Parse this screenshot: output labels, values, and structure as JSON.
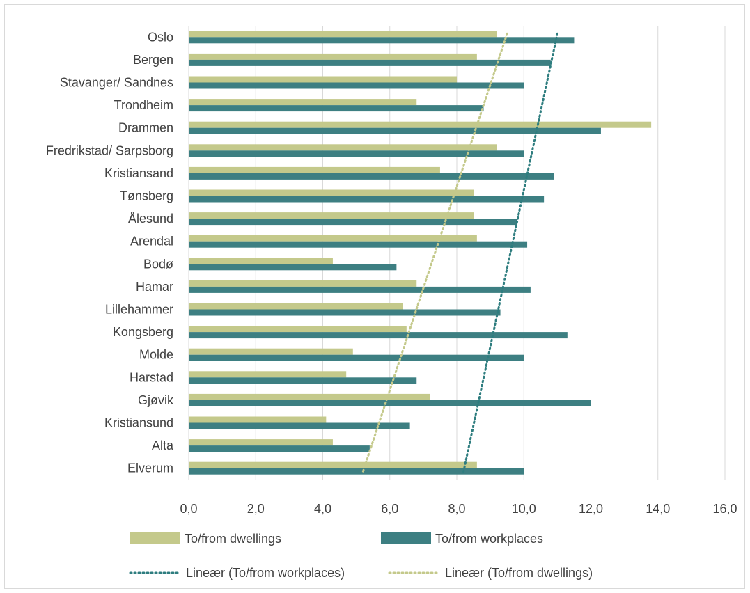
{
  "chart_data": {
    "type": "bar",
    "orientation": "horizontal",
    "categories": [
      "Oslo",
      "Bergen",
      "Stavanger/ Sandnes",
      "Trondheim",
      "Drammen",
      "Fredrikstad/ Sarpsborg",
      "Kristiansand",
      "Tønsberg",
      "Ålesund",
      "Arendal",
      "Bodø",
      "Hamar",
      "Lillehammer",
      "Kongsberg",
      "Molde",
      "Harstad",
      "Gjøvik",
      "Kristiansund",
      "Alta",
      "Elverum"
    ],
    "series": [
      {
        "name": "To/from dwellings",
        "color": "#c4c98b",
        "values": [
          9.2,
          8.6,
          8.0,
          6.8,
          13.8,
          9.2,
          7.5,
          8.5,
          8.5,
          8.6,
          4.3,
          6.8,
          6.4,
          6.5,
          4.9,
          4.7,
          7.2,
          4.1,
          4.3,
          8.6
        ]
      },
      {
        "name": "To/from workplaces",
        "color": "#3d7f82",
        "values": [
          11.5,
          10.8,
          10.0,
          8.8,
          12.3,
          10.0,
          10.9,
          10.6,
          9.8,
          10.1,
          6.2,
          10.2,
          9.3,
          11.3,
          10.0,
          6.8,
          12.0,
          6.6,
          5.4,
          10.0
        ]
      }
    ],
    "trendlines": [
      {
        "name": "Lineær (To/from workplaces)",
        "color": "#2e7d7f",
        "start": 11.0,
        "end": 8.2
      },
      {
        "name": "Lineær (To/from dwellings)",
        "color": "#c4c98b",
        "start": 9.5,
        "end": 5.2
      }
    ],
    "xlim": [
      0,
      16
    ],
    "xticks": [
      "0,0",
      "2,0",
      "4,0",
      "6,0",
      "8,0",
      "10,0",
      "12,0",
      "14,0",
      "16,0"
    ],
    "grid": true,
    "legend_position": "bottom"
  }
}
